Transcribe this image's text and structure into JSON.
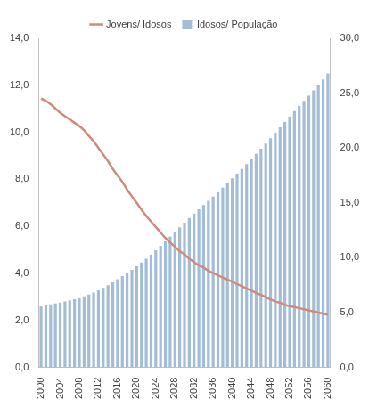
{
  "chart_data": {
    "type": "bar",
    "categories": [
      "2000",
      null,
      null,
      null,
      "2004",
      null,
      null,
      null,
      "2008",
      null,
      null,
      null,
      "2012",
      null,
      null,
      null,
      "2016",
      null,
      null,
      null,
      "2020",
      null,
      null,
      null,
      "2024",
      null,
      null,
      null,
      "2028",
      null,
      null,
      null,
      "2032",
      null,
      null,
      null,
      "2036",
      null,
      null,
      null,
      "2040",
      null,
      null,
      null,
      "2044",
      null,
      null,
      null,
      "2048",
      null,
      null,
      null,
      "2052",
      null,
      null,
      null,
      "2056",
      null,
      null,
      null,
      "2060"
    ],
    "series": [
      {
        "name": "Idosos/ População",
        "type": "bar",
        "color": "#a3bdd6",
        "values": [
          2.6,
          2.64,
          2.68,
          2.72,
          2.76,
          2.8,
          2.85,
          2.9,
          2.95,
          3.02,
          3.1,
          3.18,
          3.28,
          3.38,
          3.5,
          3.62,
          3.75,
          3.88,
          4.0,
          4.15,
          4.3,
          4.46,
          4.62,
          4.8,
          4.98,
          5.17,
          5.36,
          5.56,
          5.76,
          5.96,
          6.16,
          6.36,
          6.55,
          6.73,
          6.91,
          7.09,
          7.27,
          7.45,
          7.64,
          7.84,
          8.04,
          8.24,
          8.44,
          8.65,
          8.86,
          9.08,
          9.3,
          9.52,
          9.75,
          9.98,
          10.21,
          10.44,
          10.67,
          10.9,
          11.12,
          11.34,
          11.56,
          11.78,
          12.0,
          12.25,
          12.5
        ]
      },
      {
        "name": "Jovens/ Idosos",
        "type": "line",
        "axis": "y2",
        "color": "#cf8a7b",
        "values": [
          24.5,
          24.3,
          24.0,
          23.6,
          23.2,
          22.9,
          22.6,
          22.3,
          22.0,
          21.6,
          21.1,
          20.6,
          20.0,
          19.4,
          18.8,
          18.1,
          17.5,
          16.9,
          16.2,
          15.6,
          15.0,
          14.4,
          13.8,
          13.3,
          12.8,
          12.3,
          11.8,
          11.4,
          11.0,
          10.6,
          10.3,
          9.9,
          9.6,
          9.3,
          9.1,
          8.8,
          8.6,
          8.4,
          8.2,
          8.0,
          7.8,
          7.6,
          7.4,
          7.2,
          7.0,
          6.8,
          6.6,
          6.4,
          6.2,
          6.0,
          5.9,
          5.7,
          5.6,
          5.5,
          5.4,
          5.3,
          5.2,
          5.1,
          5.0,
          4.9,
          4.8
        ]
      }
    ],
    "ylim": [
      0,
      14
    ],
    "yticks": [
      {
        "value": 0,
        "label": "0,0"
      },
      {
        "value": 2,
        "label": "2,0"
      },
      {
        "value": 4,
        "label": "4,0"
      },
      {
        "value": 6,
        "label": "6,0"
      },
      {
        "value": 8,
        "label": "8,0"
      },
      {
        "value": 10,
        "label": "10,0"
      },
      {
        "value": 12,
        "label": "12,0"
      },
      {
        "value": 14,
        "label": "14,0"
      }
    ],
    "y2lim": [
      0,
      30
    ],
    "y2ticks": [
      {
        "value": 0,
        "label": "0,0"
      },
      {
        "value": 5,
        "label": "5,0"
      },
      {
        "value": 10,
        "label": "10,0"
      },
      {
        "value": 15,
        "label": "15,0"
      },
      {
        "value": 20,
        "label": "20,0"
      },
      {
        "value": 25,
        "label": "25,0"
      },
      {
        "value": 30,
        "label": "30,0"
      }
    ],
    "grid": false,
    "legend": "top"
  }
}
